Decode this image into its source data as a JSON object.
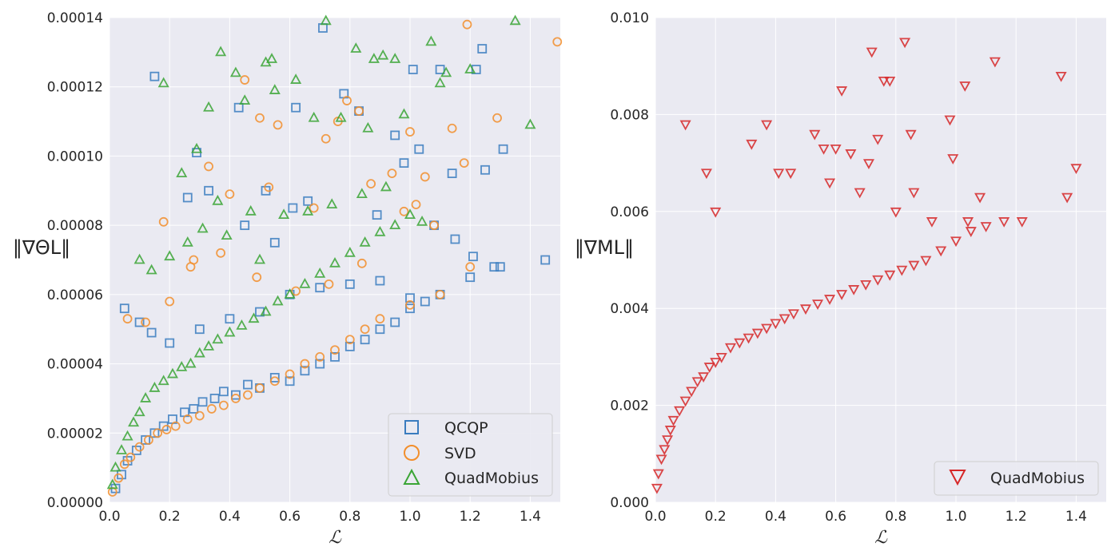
{
  "chart_data": [
    {
      "type": "scatter",
      "xlabel": "ℒ",
      "ylabel": "‖∇ΘL‖",
      "xlim": [
        0,
        1.5
      ],
      "ylim": [
        0,
        0.00014
      ],
      "xticks": [
        0.0,
        0.2,
        0.4,
        0.6,
        0.8,
        1.0,
        1.2,
        1.4
      ],
      "xtick_labels": [
        "0.0",
        "0.2",
        "0.4",
        "0.6",
        "0.8",
        "1.0",
        "1.2",
        "1.4"
      ],
      "yticks": [
        0,
        2e-05,
        4e-05,
        6e-05,
        8e-05,
        0.0001,
        0.00012,
        0.00014
      ],
      "ytick_labels": [
        "0.00000",
        "0.00002",
        "0.00004",
        "0.00006",
        "0.00008",
        "0.00010",
        "0.00012",
        "0.00014"
      ],
      "grid": true,
      "legend_position": "bottom-right",
      "series": [
        {
          "name": "QCQP",
          "marker": "square",
          "color": "#3a7cbf",
          "x": [
            0.02,
            0.04,
            0.06,
            0.09,
            0.12,
            0.15,
            0.18,
            0.21,
            0.25,
            0.28,
            0.31,
            0.35,
            0.38,
            0.42,
            0.46,
            0.5,
            0.55,
            0.6,
            0.65,
            0.7,
            0.75,
            0.8,
            0.85,
            0.9,
            0.95,
            1.0,
            1.1,
            1.2,
            1.3,
            1.45,
            0.15,
            0.71,
            0.78,
            1.01,
            1.1,
            1.24,
            1.22,
            0.29,
            0.43,
            0.62,
            0.83,
            0.95,
            1.03,
            1.14,
            1.25,
            1.31,
            0.26,
            0.52,
            0.61,
            0.66,
            0.89,
            0.98,
            1.08,
            1.21,
            1.28,
            1.15,
            0.05,
            0.1,
            0.14,
            0.2,
            0.3,
            0.4,
            0.5,
            0.6,
            0.7,
            0.8,
            0.9,
            1.0,
            1.05,
            0.33,
            0.45,
            0.55
          ],
          "y": [
            4e-06,
            8e-06,
            1.2e-05,
            1.5e-05,
            1.8e-05,
            2e-05,
            2.2e-05,
            2.4e-05,
            2.6e-05,
            2.7e-05,
            2.9e-05,
            3e-05,
            3.2e-05,
            3.1e-05,
            3.4e-05,
            3.3e-05,
            3.6e-05,
            3.5e-05,
            3.8e-05,
            4e-05,
            4.2e-05,
            4.5e-05,
            4.7e-05,
            5e-05,
            5.2e-05,
            5.6e-05,
            6e-05,
            6.5e-05,
            6.8e-05,
            7e-05,
            0.000123,
            0.000137,
            0.000118,
            0.000125,
            0.000125,
            0.000131,
            0.000125,
            0.000101,
            0.000114,
            0.000114,
            0.000113,
            0.000106,
            0.000102,
            9.5e-05,
            9.6e-05,
            0.000102,
            8.8e-05,
            9e-05,
            8.5e-05,
            8.7e-05,
            8.3e-05,
            9.8e-05,
            8e-05,
            7.1e-05,
            6.8e-05,
            7.6e-05,
            5.6e-05,
            5.2e-05,
            4.9e-05,
            4.6e-05,
            5e-05,
            5.3e-05,
            5.5e-05,
            6e-05,
            6.2e-05,
            6.3e-05,
            6.4e-05,
            5.9e-05,
            5.8e-05,
            9e-05,
            8e-05,
            7.5e-05
          ]
        },
        {
          "name": "SVD",
          "marker": "circle",
          "color": "#f28e2b",
          "x": [
            0.01,
            0.03,
            0.05,
            0.07,
            0.1,
            0.13,
            0.16,
            0.19,
            0.22,
            0.26,
            0.3,
            0.34,
            0.38,
            0.42,
            0.46,
            0.5,
            0.55,
            0.6,
            0.65,
            0.7,
            0.75,
            0.8,
            0.85,
            0.9,
            1.0,
            1.1,
            1.2,
            1.29,
            1.49,
            0.45,
            0.5,
            0.56,
            0.72,
            0.76,
            0.79,
            0.83,
            1.0,
            1.05,
            1.14,
            1.19,
            0.33,
            0.4,
            0.53,
            0.68,
            0.87,
            0.94,
            1.02,
            1.18,
            0.18,
            0.28,
            0.37,
            0.49,
            0.62,
            0.73,
            0.84,
            0.98,
            1.08,
            0.06,
            0.12,
            0.2,
            0.27
          ],
          "y": [
            3e-06,
            7e-06,
            1.1e-05,
            1.3e-05,
            1.6e-05,
            1.8e-05,
            2e-05,
            2.1e-05,
            2.2e-05,
            2.4e-05,
            2.5e-05,
            2.7e-05,
            2.8e-05,
            3e-05,
            3.1e-05,
            3.3e-05,
            3.5e-05,
            3.7e-05,
            4e-05,
            4.2e-05,
            4.4e-05,
            4.7e-05,
            5e-05,
            5.3e-05,
            5.7e-05,
            6e-05,
            6.8e-05,
            0.000111,
            0.000133,
            0.000122,
            0.000111,
            0.000109,
            0.000105,
            0.00011,
            0.000116,
            0.000113,
            0.000107,
            9.4e-05,
            0.000108,
            0.000138,
            9.7e-05,
            8.9e-05,
            9.1e-05,
            8.5e-05,
            9.2e-05,
            9.5e-05,
            8.6e-05,
            9.8e-05,
            8.1e-05,
            7e-05,
            7.2e-05,
            6.5e-05,
            6.1e-05,
            6.3e-05,
            6.9e-05,
            8.4e-05,
            8e-05,
            5.3e-05,
            5.2e-05,
            5.8e-05,
            6.8e-05
          ]
        },
        {
          "name": "QuadMobius",
          "marker": "triangle-up",
          "color": "#3aa535",
          "x": [
            0.01,
            0.02,
            0.04,
            0.06,
            0.08,
            0.1,
            0.12,
            0.15,
            0.18,
            0.21,
            0.24,
            0.27,
            0.3,
            0.33,
            0.36,
            0.4,
            0.44,
            0.48,
            0.52,
            0.56,
            0.6,
            0.65,
            0.7,
            0.75,
            0.8,
            0.85,
            0.9,
            0.95,
            1.0,
            1.1,
            1.2,
            1.35,
            1.4,
            0.37,
            0.42,
            0.52,
            0.54,
            0.62,
            0.72,
            0.82,
            0.88,
            0.91,
            0.95,
            1.07,
            1.12,
            0.18,
            0.33,
            0.45,
            0.55,
            0.68,
            0.77,
            0.86,
            0.98,
            0.24,
            0.29,
            0.36,
            0.47,
            0.58,
            0.66,
            0.74,
            0.84,
            0.92,
            1.04,
            0.1,
            0.14,
            0.2,
            0.26,
            0.31,
            0.39,
            0.5
          ],
          "y": [
            5e-06,
            1e-05,
            1.5e-05,
            1.9e-05,
            2.3e-05,
            2.6e-05,
            3e-05,
            3.3e-05,
            3.5e-05,
            3.7e-05,
            3.9e-05,
            4e-05,
            4.3e-05,
            4.5e-05,
            4.7e-05,
            4.9e-05,
            5.1e-05,
            5.3e-05,
            5.5e-05,
            5.8e-05,
            6e-05,
            6.3e-05,
            6.6e-05,
            6.9e-05,
            7.2e-05,
            7.5e-05,
            7.8e-05,
            8e-05,
            8.3e-05,
            0.000121,
            0.000125,
            0.000139,
            0.000109,
            0.00013,
            0.000124,
            0.000127,
            0.000128,
            0.000122,
            0.000139,
            0.000131,
            0.000128,
            0.000129,
            0.000128,
            0.000133,
            0.000124,
            0.000121,
            0.000114,
            0.000116,
            0.000119,
            0.000111,
            0.000111,
            0.000108,
            0.000112,
            9.5e-05,
            0.000102,
            8.7e-05,
            8.4e-05,
            8.3e-05,
            8.4e-05,
            8.6e-05,
            8.9e-05,
            9.1e-05,
            8.1e-05,
            7e-05,
            6.7e-05,
            7.1e-05,
            7.5e-05,
            7.9e-05,
            7.7e-05,
            7e-05
          ]
        }
      ]
    },
    {
      "type": "scatter",
      "xlabel": "ℒ",
      "ylabel": "‖∇ML‖",
      "xlim": [
        0,
        1.5
      ],
      "ylim": [
        0,
        0.01
      ],
      "xticks": [
        0.0,
        0.2,
        0.4,
        0.6,
        0.8,
        1.0,
        1.2,
        1.4
      ],
      "xtick_labels": [
        "0.0",
        "0.2",
        "0.4",
        "0.6",
        "0.8",
        "1.0",
        "1.2",
        "1.4"
      ],
      "yticks": [
        0,
        0.002,
        0.004,
        0.006,
        0.008,
        0.01
      ],
      "ytick_labels": [
        "0.000",
        "0.002",
        "0.004",
        "0.006",
        "0.008",
        "0.010"
      ],
      "grid": true,
      "legend_position": "bottom-right",
      "series": [
        {
          "name": "QuadMobius",
          "marker": "triangle-down",
          "color": "#d62728",
          "x": [
            0.005,
            0.01,
            0.02,
            0.03,
            0.04,
            0.05,
            0.06,
            0.08,
            0.1,
            0.12,
            0.14,
            0.16,
            0.18,
            0.2,
            0.22,
            0.25,
            0.28,
            0.31,
            0.34,
            0.37,
            0.4,
            0.43,
            0.46,
            0.5,
            0.54,
            0.58,
            0.62,
            0.66,
            0.7,
            0.74,
            0.78,
            0.82,
            0.86,
            0.9,
            0.95,
            1.0,
            1.05,
            1.1,
            1.16,
            1.22,
            1.37,
            1.4,
            0.1,
            0.17,
            0.2,
            0.32,
            0.37,
            0.53,
            0.56,
            0.6,
            0.62,
            0.65,
            0.71,
            0.74,
            0.76,
            0.83,
            0.85,
            0.98,
            1.03,
            1.13,
            1.35,
            0.72,
            0.78,
            0.99,
            0.41,
            0.45,
            0.58,
            0.68,
            0.8,
            0.86,
            0.92,
            1.04,
            1.08
          ],
          "y": [
            0.0003,
            0.0006,
            0.0009,
            0.0011,
            0.0013,
            0.0015,
            0.0017,
            0.0019,
            0.0021,
            0.0023,
            0.0025,
            0.0026,
            0.0028,
            0.0029,
            0.003,
            0.0032,
            0.0033,
            0.0034,
            0.0035,
            0.0036,
            0.0037,
            0.0038,
            0.0039,
            0.004,
            0.0041,
            0.0042,
            0.0043,
            0.0044,
            0.0045,
            0.0046,
            0.0047,
            0.0048,
            0.0049,
            0.005,
            0.0052,
            0.0054,
            0.0056,
            0.0057,
            0.0058,
            0.0058,
            0.0063,
            0.0069,
            0.0078,
            0.0068,
            0.006,
            0.0074,
            0.0078,
            0.0076,
            0.0073,
            0.0073,
            0.0085,
            0.0072,
            0.007,
            0.0075,
            0.0087,
            0.0095,
            0.0076,
            0.0079,
            0.0086,
            0.0091,
            0.0088,
            0.0093,
            0.0087,
            0.0071,
            0.0068,
            0.0068,
            0.0066,
            0.0064,
            0.006,
            0.0064,
            0.0058,
            0.0058,
            0.0063
          ]
        }
      ]
    }
  ],
  "legend1": {
    "items": [
      "QCQP",
      "SVD",
      "QuadMobius"
    ]
  },
  "legend2": {
    "items": [
      "QuadMobius"
    ]
  }
}
